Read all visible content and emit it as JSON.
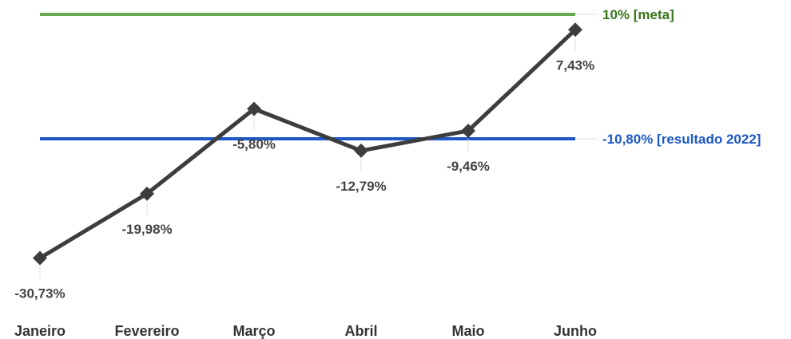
{
  "chart_data": {
    "type": "line",
    "title": "",
    "xlabel": "",
    "ylabel": "",
    "categories": [
      "Janeiro",
      "Fevereiro",
      "Março",
      "Abril",
      "Maio",
      "Junho"
    ],
    "series": [
      {
        "values": [
          -30.73,
          -19.98,
          -5.8,
          -12.79,
          -9.46,
          7.43
        ],
        "labels": [
          "-30,73%",
          "-19,98%",
          "-5,80%",
          "-12,79%",
          "-9,46%",
          "7,43%"
        ],
        "color": "#3d3d3d",
        "marker": "diamond"
      }
    ],
    "reference_lines": [
      {
        "label": "10% [meta]",
        "value": 10,
        "color": "#6aa84f",
        "label_color": "#38761d"
      },
      {
        "label": "-10,80% [resultado 2022]",
        "value": -10.8,
        "color": "#1c58c8",
        "label_color": "#1c58c8"
      }
    ],
    "ylim": [
      -38,
      12
    ],
    "grid": false,
    "legend": "none"
  }
}
